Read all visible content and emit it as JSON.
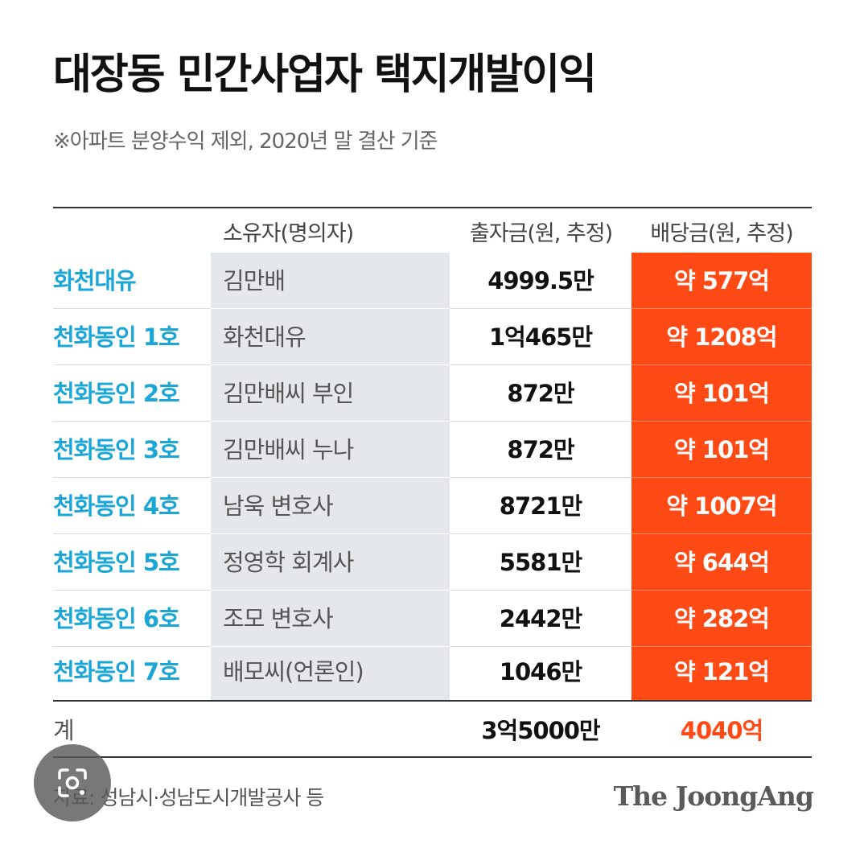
{
  "title": "대장동 민간사업자 택지개발이익",
  "subtitle": "※아파트 분양수익 제외, 2020년 말 결산 기준",
  "headers": {
    "owner": "소유자(명의자)",
    "investment": "출자금(원, 추정)",
    "dividend": "배당금(원, 추정)"
  },
  "rows": [
    {
      "name": "화천대유",
      "owner": "김만배",
      "investment": "4999.5만",
      "dividend": "약 577억"
    },
    {
      "name": "천화동인 1호",
      "owner": "화천대유",
      "investment": "1억465만",
      "dividend": "약 1208억"
    },
    {
      "name": "천화동인 2호",
      "owner": "김만배씨 부인",
      "investment": "872만",
      "dividend": "약 101억"
    },
    {
      "name": "천화동인 3호",
      "owner": "김만배씨 누나",
      "investment": "872만",
      "dividend": "약 101억"
    },
    {
      "name": "천화동인 4호",
      "owner": "남욱 변호사",
      "investment": "8721만",
      "dividend": "약 1007억"
    },
    {
      "name": "천화동인 5호",
      "owner": "정영학 회계사",
      "investment": "5581만",
      "dividend": "약 644억"
    },
    {
      "name": "천화동인 6호",
      "owner": "조모 변호사",
      "investment": "2442만",
      "dividend": "약 282억"
    },
    {
      "name": "천화동인 7호",
      "owner": "배모씨(언론인)",
      "investment": "1046만",
      "dividend": "약 121억"
    }
  ],
  "total": {
    "label": "계",
    "investment": "3억5000만",
    "dividend": "4040억"
  },
  "source": "자료: 성남시·성남도시개발공사 등",
  "brand": "The JoongAng",
  "colors": {
    "accent_orange": "#ff4a16",
    "name_blue": "#1aa6d6",
    "owner_column_bg": "#e4e8eb"
  },
  "overlay": {
    "icon": "lens-search-icon"
  },
  "chart_data": {
    "type": "table",
    "title": "대장동 민간사업자 택지개발이익",
    "subtitle": "※아파트 분양수익 제외, 2020년 말 결산 기준",
    "columns": [
      "",
      "소유자(명의자)",
      "출자금(원, 추정)",
      "배당금(원, 추정)"
    ],
    "rows": [
      [
        "화천대유",
        "김만배",
        "4999.5만",
        "약 577억"
      ],
      [
        "천화동인 1호",
        "화천대유",
        "1억465만",
        "약 1208억"
      ],
      [
        "천화동인 2호",
        "김만배씨 부인",
        "872만",
        "약 101억"
      ],
      [
        "천화동인 3호",
        "김만배씨 누나",
        "872만",
        "약 101억"
      ],
      [
        "천화동인 4호",
        "남욱 변호사",
        "8721만",
        "약 1007억"
      ],
      [
        "천화동인 5호",
        "정영학 회계사",
        "5581만",
        "약 644억"
      ],
      [
        "천화동인 6호",
        "조모 변호사",
        "2442만",
        "약 282억"
      ],
      [
        "천화동인 7호",
        "배모씨(언론인)",
        "1046만",
        "약 121억"
      ]
    ],
    "total": [
      "계",
      "",
      "3억5000만",
      "4040억"
    ],
    "source": "자료: 성남시·성남도시개발공사 등"
  }
}
